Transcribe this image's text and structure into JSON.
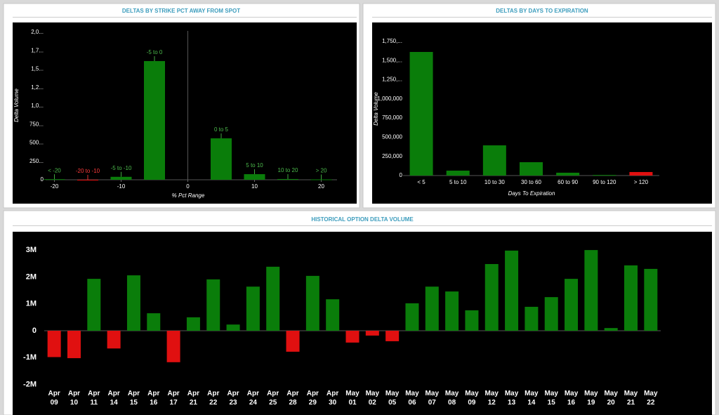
{
  "chart_data": [
    {
      "type": "bar",
      "title": "DELTAS BY STRIKE PCT AWAY FROM SPOT",
      "x_label": "% Pct Range",
      "y_label": "Delta Volume",
      "categories": [
        "< -20",
        "-20 to -10",
        "-5 to -10",
        "-5 to 0",
        "0 to 5",
        "5 to 10",
        "10 to 20",
        "> 20"
      ],
      "x": [
        -20,
        -15,
        -10,
        -5,
        5,
        10,
        15,
        20
      ],
      "values": [
        8,
        -4,
        40,
        1610,
        562,
        76,
        10,
        5
      ],
      "colors": [
        "#0a7d0a",
        "#e01010",
        "#0a7d0a",
        "#0a7d0a",
        "#0a7d0a",
        "#0a7d0a",
        "#0a7d0a",
        "#0a7d0a"
      ],
      "xlim": [
        -25,
        25
      ],
      "xticks": [
        -20,
        -10,
        0,
        10,
        20
      ],
      "ylim": [
        0,
        2100
      ],
      "yticks": [
        0,
        {
          "value": 250,
          "label": "250..."
        },
        {
          "value": 500,
          "label": "500..."
        },
        {
          "value": 750,
          "label": "750..."
        },
        {
          "value": 1000,
          "label": "1,0..."
        },
        {
          "value": 1250,
          "label": "1,2..."
        },
        {
          "value": 1500,
          "label": "1,5..."
        },
        {
          "value": 1750,
          "label": "1,7..."
        },
        {
          "value": 2000,
          "label": "2,0..."
        }
      ]
    },
    {
      "type": "bar",
      "title": "DELTAS BY DAYS TO EXPIRATION",
      "x_label": "Days To Expiration",
      "y_label": "Delta Volume",
      "categories": [
        "< 5",
        "5 to 10",
        "10 to 30",
        "30 to 60",
        "60 to 90",
        "90 to 120",
        "> 120"
      ],
      "values": [
        1612000,
        64000,
        394000,
        174000,
        37000,
        8000,
        46000
      ],
      "colors": [
        "#0a7d0a",
        "#0a7d0a",
        "#0a7d0a",
        "#0a7d0a",
        "#0a7d0a",
        "#0a7d0a",
        "#e01010"
      ],
      "ylim": [
        0,
        1850000
      ],
      "yticks": [
        0,
        {
          "value": 250000,
          "label": "250,000"
        },
        {
          "value": 500000,
          "label": "500,000"
        },
        {
          "value": 750000,
          "label": "750,000"
        },
        {
          "value": 1000000,
          "label": "1,000,000"
        },
        {
          "value": 1250000,
          "label": "1,250,..."
        },
        {
          "value": 1500000,
          "label": "1,500,..."
        },
        {
          "value": 1750000,
          "label": "1,750,..."
        }
      ]
    },
    {
      "type": "bar",
      "title": "HISTORICAL OPTION DELTA VOLUME",
      "categories": [
        "Apr 09",
        "Apr 10",
        "Apr 11",
        "Apr 14",
        "Apr 15",
        "Apr 16",
        "Apr 17",
        "Apr 21",
        "Apr 22",
        "Apr 23",
        "Apr 24",
        "Apr 25",
        "Apr 28",
        "Apr 29",
        "Apr 30",
        "May 01",
        "May 02",
        "May 05",
        "May 06",
        "May 07",
        "May 08",
        "May 09",
        "May 12",
        "May 13",
        "May 14",
        "May 15",
        "May 16",
        "May 19",
        "May 20",
        "May 21",
        "May 22"
      ],
      "values": [
        -980000,
        -1020000,
        1930000,
        -660000,
        2060000,
        650000,
        -1170000,
        500000,
        1910000,
        230000,
        1640000,
        2380000,
        -780000,
        2040000,
        1170000,
        -440000,
        -180000,
        -390000,
        1020000,
        1640000,
        1460000,
        760000,
        2480000,
        2980000,
        890000,
        1250000,
        1930000,
        3000000,
        100000,
        2430000,
        2300000
      ],
      "positive_color": "#0a7d0a",
      "negative_color": "#e01010",
      "ylim": [
        -2500000,
        3500000
      ],
      "yticks": [
        {
          "value": -2000000,
          "label": "-2M"
        },
        {
          "value": -1000000,
          "label": "-1M"
        },
        0,
        {
          "value": 1000000,
          "label": "1M"
        },
        {
          "value": 2000000,
          "label": "2M"
        },
        {
          "value": 3000000,
          "label": "3M"
        }
      ]
    }
  ]
}
